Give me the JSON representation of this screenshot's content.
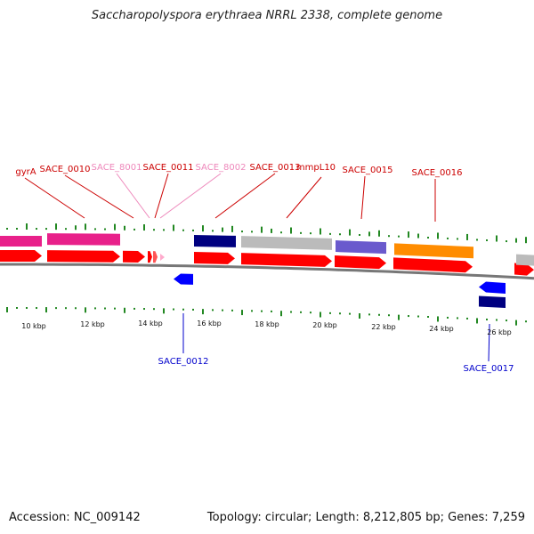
{
  "title": "Saccharopolyspora erythraea NRRL 2338, complete genome",
  "footer": {
    "accession": "Accession: NC_009142",
    "summary": "Topology: circular; Length: 8,212,805 bp; Genes: 7,259"
  },
  "colors": {
    "cds_fwd": "#ff0000",
    "cds_rev": "#0000ff",
    "label_red": "#cc0000",
    "label_pink": "#ee88bb",
    "label_blue": "#0000cc",
    "tick": "#228822",
    "backbone": "#777777"
  },
  "labels": [
    {
      "text": "gyrA",
      "tone": "red"
    },
    {
      "text": "SACE_0010",
      "tone": "red"
    },
    {
      "text": "SACE_8001",
      "tone": "pink"
    },
    {
      "text": "SACE_0011",
      "tone": "red"
    },
    {
      "text": "SACE_8002",
      "tone": "pink"
    },
    {
      "text": "SACE_0013",
      "tone": "red"
    },
    {
      "text": "mmpL10",
      "tone": "red"
    },
    {
      "text": "SACE_0015",
      "tone": "red"
    },
    {
      "text": "SACE_0016",
      "tone": "red"
    },
    {
      "text": "SACE_0012",
      "tone": "blue"
    },
    {
      "text": "SACE_0017",
      "tone": "blue"
    }
  ],
  "axis_ticks": [
    "10 kbp",
    "12 kbp",
    "14 kbp",
    "16 kbp",
    "18 kbp",
    "20 kbp",
    "22 kbp",
    "24 kbp",
    "26 kbp"
  ]
}
